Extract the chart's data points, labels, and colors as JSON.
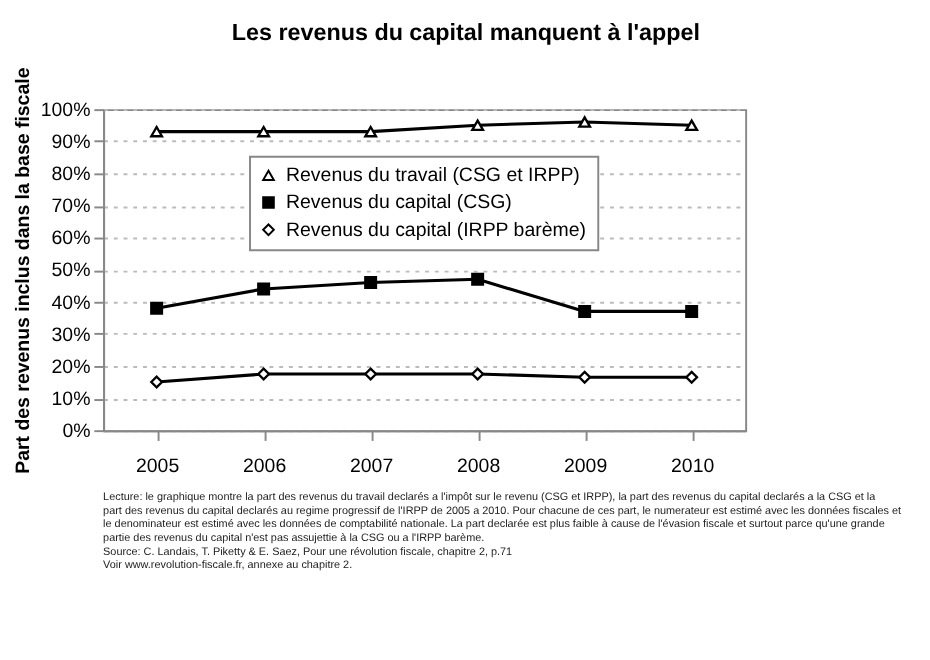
{
  "chart_data": {
    "type": "line",
    "title": "Les revenus du capital manquent à l'appel",
    "ylabel": "Part des revenus inclus dans la base fiscale",
    "categories": [
      "2005",
      "2006",
      "2007",
      "2008",
      "2009",
      "2010"
    ],
    "series": [
      {
        "name": "Revenus du travail (CSG et IRPP)",
        "color": "#000000",
        "marker": "triangle",
        "values": [
          93,
          93,
          93,
          95,
          96,
          95
        ]
      },
      {
        "name": "Revenus du capital (CSG)",
        "color": "#000000",
        "marker": "square",
        "values": [
          38,
          44,
          46,
          47,
          37,
          37
        ]
      },
      {
        "name": "Revenus du capital (IRPP barème)",
        "color": "#000000",
        "marker": "diamond",
        "values": [
          15,
          17.5,
          17.5,
          17.5,
          16.5,
          16.5
        ]
      }
    ],
    "ylim": [
      0,
      100
    ],
    "yticks": [
      {
        "value": 0,
        "label": "0%"
      },
      {
        "value": 10,
        "label": "10%"
      },
      {
        "value": 20,
        "label": "20%"
      },
      {
        "value": 30,
        "label": "30%"
      },
      {
        "value": 40,
        "label": "40%"
      },
      {
        "value": 50,
        "label": "50%"
      },
      {
        "value": 60,
        "label": "60%"
      },
      {
        "value": 70,
        "label": "70%"
      },
      {
        "value": 80,
        "label": "80%"
      },
      {
        "value": 90,
        "label": "90%"
      },
      {
        "value": 100,
        "label": "100%"
      }
    ],
    "grid": "y",
    "legend": "top",
    "line_style": "solid",
    "annotations": [
      "Lecture: le graphique montre la part des revenus du travail declarés a l'impôt sur le revenu (CSG et IRPP), la part des revenus du capital declarés a la CSG et la part des revenus du capital declarés au regime progressif de l'IRPP de 2005 a 2010. Pour chacune de ces part, le numerateur est estimé avec les données fiscales et le denominateur est estimé avec les données de comptabilité nationale. La part declarée est plus faible à cause de l'évasion fiscale et surtout parce qu'une grande partie des revenus du capital n'est pas assujettie à la CSG ou a l'IRPP barème.",
      "Source: C. Landais, T. Piketty & E. Saez, Pour une révolution fiscale, chapitre 2, p.71",
      "Voir www.revolution-fiscale.fr, annexe au chapitre 2."
    ]
  }
}
